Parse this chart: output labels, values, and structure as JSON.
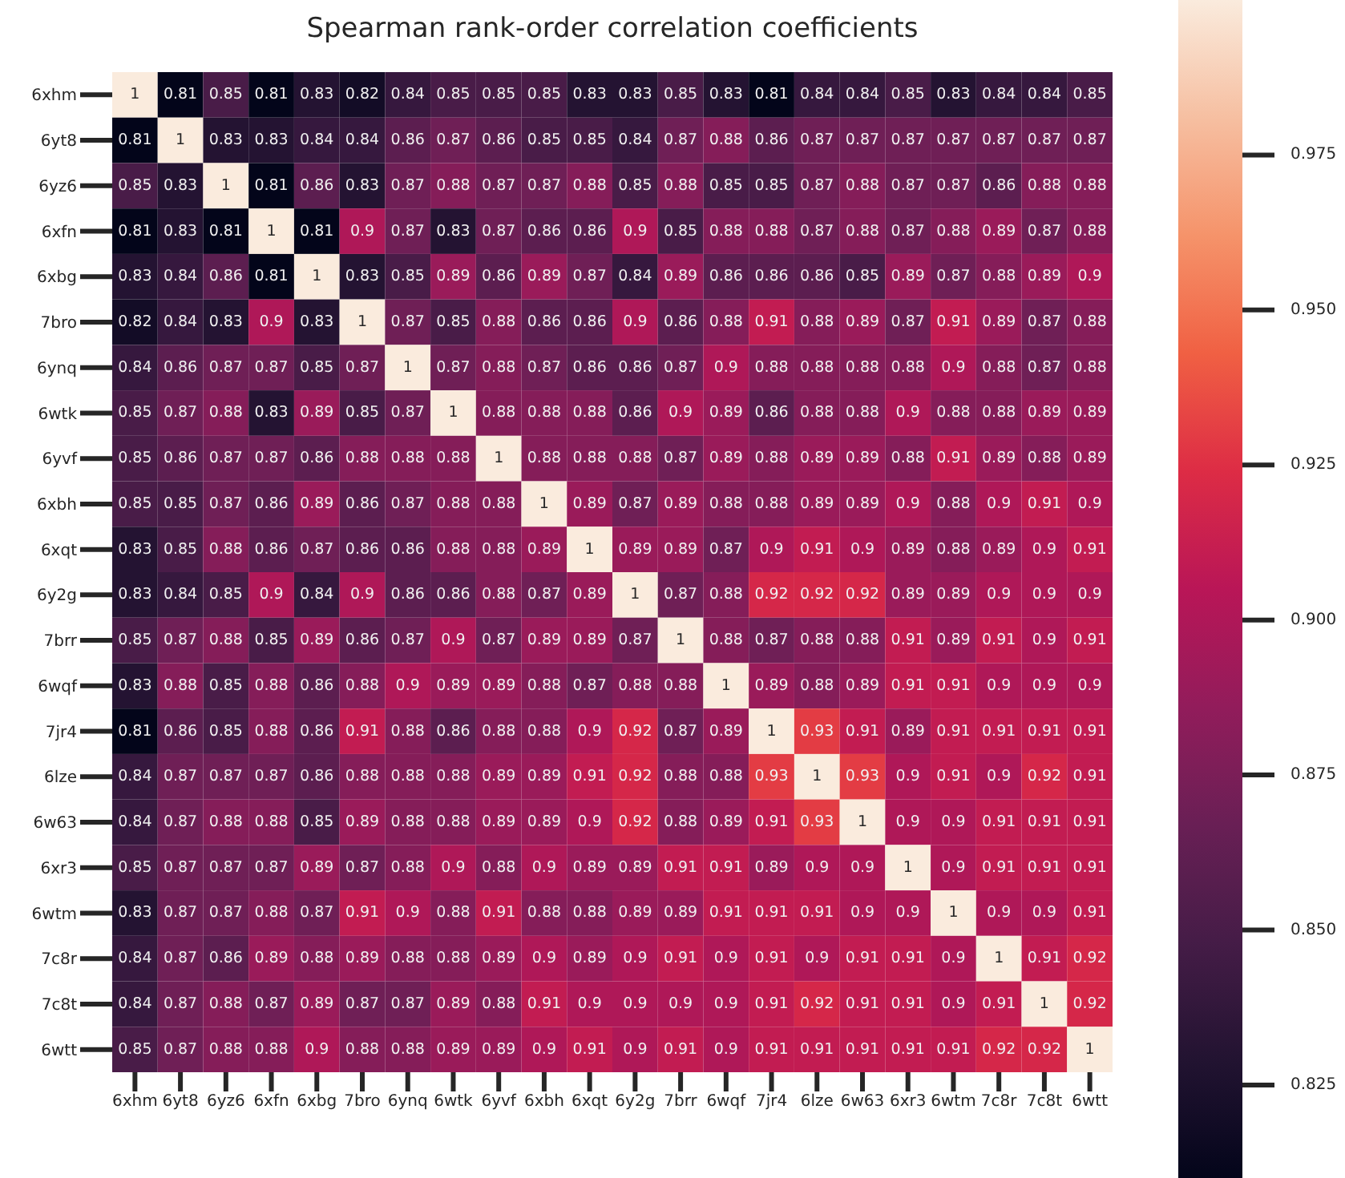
{
  "chart_data": {
    "type": "heatmap",
    "title": "Spearman rank-order correlation coefficients",
    "categories": [
      "6xhm",
      "6yt8",
      "6yz6",
      "6xfn",
      "6xbg",
      "7bro",
      "6ynq",
      "6wtk",
      "6yvf",
      "6xbh",
      "6xqt",
      "6y2g",
      "7brr",
      "6wqf",
      "7jr4",
      "6lze",
      "6w63",
      "6xr3",
      "6wtm",
      "7c8r",
      "7c8t",
      "6wtt"
    ],
    "y_categories": [
      "6xhm",
      "6yt8",
      "6yz6",
      "6xfn",
      "6xbg",
      "7bro",
      "6ynq",
      "6wtk",
      "6yvf",
      "6xbh",
      "6xqt",
      "6y2g",
      "7brr",
      "6wqf",
      "7jr4",
      "6lze",
      "6w63",
      "6xr3",
      "6wtm",
      "7c8r",
      "7c8t",
      "6wtt"
    ],
    "cells": [
      [
        1,
        0.81,
        0.85,
        0.81,
        0.83,
        0.82,
        0.84,
        0.85,
        0.85,
        0.85,
        0.83,
        0.83,
        0.85,
        0.83,
        0.81,
        0.84,
        0.84,
        0.85,
        0.83,
        0.84,
        0.84,
        0.85
      ],
      [
        0.81,
        1,
        0.83,
        0.83,
        0.84,
        0.84,
        0.86,
        0.87,
        0.86,
        0.85,
        0.85,
        0.84,
        0.87,
        0.88,
        0.86,
        0.87,
        0.87,
        0.87,
        0.87,
        0.87,
        0.87,
        0.87
      ],
      [
        0.85,
        0.83,
        1,
        0.81,
        0.86,
        0.83,
        0.87,
        0.88,
        0.87,
        0.87,
        0.88,
        0.85,
        0.88,
        0.85,
        0.85,
        0.87,
        0.88,
        0.87,
        0.87,
        0.86,
        0.88,
        0.88
      ],
      [
        0.81,
        0.83,
        0.81,
        1,
        0.81,
        0.9,
        0.87,
        0.83,
        0.87,
        0.86,
        0.86,
        0.9,
        0.85,
        0.88,
        0.88,
        0.87,
        0.88,
        0.87,
        0.88,
        0.89,
        0.87,
        0.88
      ],
      [
        0.83,
        0.84,
        0.86,
        0.81,
        1,
        0.83,
        0.85,
        0.89,
        0.86,
        0.89,
        0.87,
        0.84,
        0.89,
        0.86,
        0.86,
        0.86,
        0.85,
        0.89,
        0.87,
        0.88,
        0.89,
        0.9
      ],
      [
        0.82,
        0.84,
        0.83,
        0.9,
        0.83,
        1,
        0.87,
        0.85,
        0.88,
        0.86,
        0.86,
        0.9,
        0.86,
        0.88,
        0.91,
        0.88,
        0.89,
        0.87,
        0.91,
        0.89,
        0.87,
        0.88
      ],
      [
        0.84,
        0.86,
        0.87,
        0.87,
        0.85,
        0.87,
        1,
        0.87,
        0.88,
        0.87,
        0.86,
        0.86,
        0.87,
        0.9,
        0.88,
        0.88,
        0.88,
        0.88,
        0.9,
        0.88,
        0.87,
        0.88
      ],
      [
        0.85,
        0.87,
        0.88,
        0.83,
        0.89,
        0.85,
        0.87,
        1,
        0.88,
        0.88,
        0.88,
        0.86,
        0.9,
        0.89,
        0.86,
        0.88,
        0.88,
        0.9,
        0.88,
        0.88,
        0.89,
        0.89
      ],
      [
        0.85,
        0.86,
        0.87,
        0.87,
        0.86,
        0.88,
        0.88,
        0.88,
        1,
        0.88,
        0.88,
        0.88,
        0.87,
        0.89,
        0.88,
        0.89,
        0.89,
        0.88,
        0.91,
        0.89,
        0.88,
        0.89
      ],
      [
        0.85,
        0.85,
        0.87,
        0.86,
        0.89,
        0.86,
        0.87,
        0.88,
        0.88,
        1,
        0.89,
        0.87,
        0.89,
        0.88,
        0.88,
        0.89,
        0.89,
        0.9,
        0.88,
        0.9,
        0.91,
        0.9
      ],
      [
        0.83,
        0.85,
        0.88,
        0.86,
        0.87,
        0.86,
        0.86,
        0.88,
        0.88,
        0.89,
        1,
        0.89,
        0.89,
        0.87,
        0.9,
        0.91,
        0.9,
        0.89,
        0.88,
        0.89,
        0.9,
        0.91
      ],
      [
        0.83,
        0.84,
        0.85,
        0.9,
        0.84,
        0.9,
        0.86,
        0.86,
        0.88,
        0.87,
        0.89,
        1,
        0.87,
        0.88,
        0.92,
        0.92,
        0.92,
        0.89,
        0.89,
        0.9,
        0.9,
        0.9
      ],
      [
        0.85,
        0.87,
        0.88,
        0.85,
        0.89,
        0.86,
        0.87,
        0.9,
        0.87,
        0.89,
        0.89,
        0.87,
        1,
        0.88,
        0.87,
        0.88,
        0.88,
        0.91,
        0.89,
        0.91,
        0.9,
        0.91
      ],
      [
        0.83,
        0.88,
        0.85,
        0.88,
        0.86,
        0.88,
        0.9,
        0.89,
        0.89,
        0.88,
        0.87,
        0.88,
        0.88,
        1,
        0.89,
        0.88,
        0.89,
        0.91,
        0.91,
        0.9,
        0.9,
        0.9
      ],
      [
        0.81,
        0.86,
        0.85,
        0.88,
        0.86,
        0.91,
        0.88,
        0.86,
        0.88,
        0.88,
        0.9,
        0.92,
        0.87,
        0.89,
        1,
        0.93,
        0.91,
        0.89,
        0.91,
        0.91,
        0.91,
        0.91
      ],
      [
        0.84,
        0.87,
        0.87,
        0.87,
        0.86,
        0.88,
        0.88,
        0.88,
        0.89,
        0.89,
        0.91,
        0.92,
        0.88,
        0.88,
        0.93,
        1,
        0.93,
        0.9,
        0.91,
        0.9,
        0.92,
        0.91
      ],
      [
        0.84,
        0.87,
        0.88,
        0.88,
        0.85,
        0.89,
        0.88,
        0.88,
        0.89,
        0.89,
        0.9,
        0.92,
        0.88,
        0.89,
        0.91,
        0.93,
        1,
        0.9,
        0.9,
        0.91,
        0.91,
        0.91
      ],
      [
        0.85,
        0.87,
        0.87,
        0.87,
        0.89,
        0.87,
        0.88,
        0.9,
        0.88,
        0.9,
        0.89,
        0.89,
        0.91,
        0.91,
        0.89,
        0.9,
        0.9,
        1,
        0.9,
        0.91,
        0.91,
        0.91
      ],
      [
        0.83,
        0.87,
        0.87,
        0.88,
        0.87,
        0.91,
        0.9,
        0.88,
        0.91,
        0.88,
        0.88,
        0.89,
        0.89,
        0.91,
        0.91,
        0.91,
        0.9,
        0.9,
        1,
        0.9,
        0.9,
        0.91
      ],
      [
        0.84,
        0.87,
        0.86,
        0.89,
        0.88,
        0.89,
        0.88,
        0.88,
        0.89,
        0.9,
        0.89,
        0.9,
        0.91,
        0.9,
        0.91,
        0.9,
        0.91,
        0.91,
        0.9,
        1,
        0.91,
        0.92
      ],
      [
        0.84,
        0.87,
        0.88,
        0.87,
        0.89,
        0.87,
        0.87,
        0.89,
        0.88,
        0.91,
        0.9,
        0.9,
        0.9,
        0.9,
        0.91,
        0.92,
        0.91,
        0.91,
        0.9,
        0.91,
        1,
        0.92
      ],
      [
        0.85,
        0.87,
        0.88,
        0.88,
        0.9,
        0.88,
        0.88,
        0.89,
        0.89,
        0.9,
        0.91,
        0.9,
        0.91,
        0.9,
        0.91,
        0.91,
        0.91,
        0.91,
        0.91,
        0.92,
        0.92,
        1
      ]
    ],
    "clim": [
      0.81,
      1
    ],
    "cticks": [
      0.825,
      {
        "value": 0.85,
        "label": "0.850"
      },
      0.875,
      {
        "value": 0.9,
        "label": "0.900"
      },
      0.925,
      {
        "value": 0.95,
        "label": "0.950"
      },
      0.975
    ],
    "data_labels": true
  }
}
